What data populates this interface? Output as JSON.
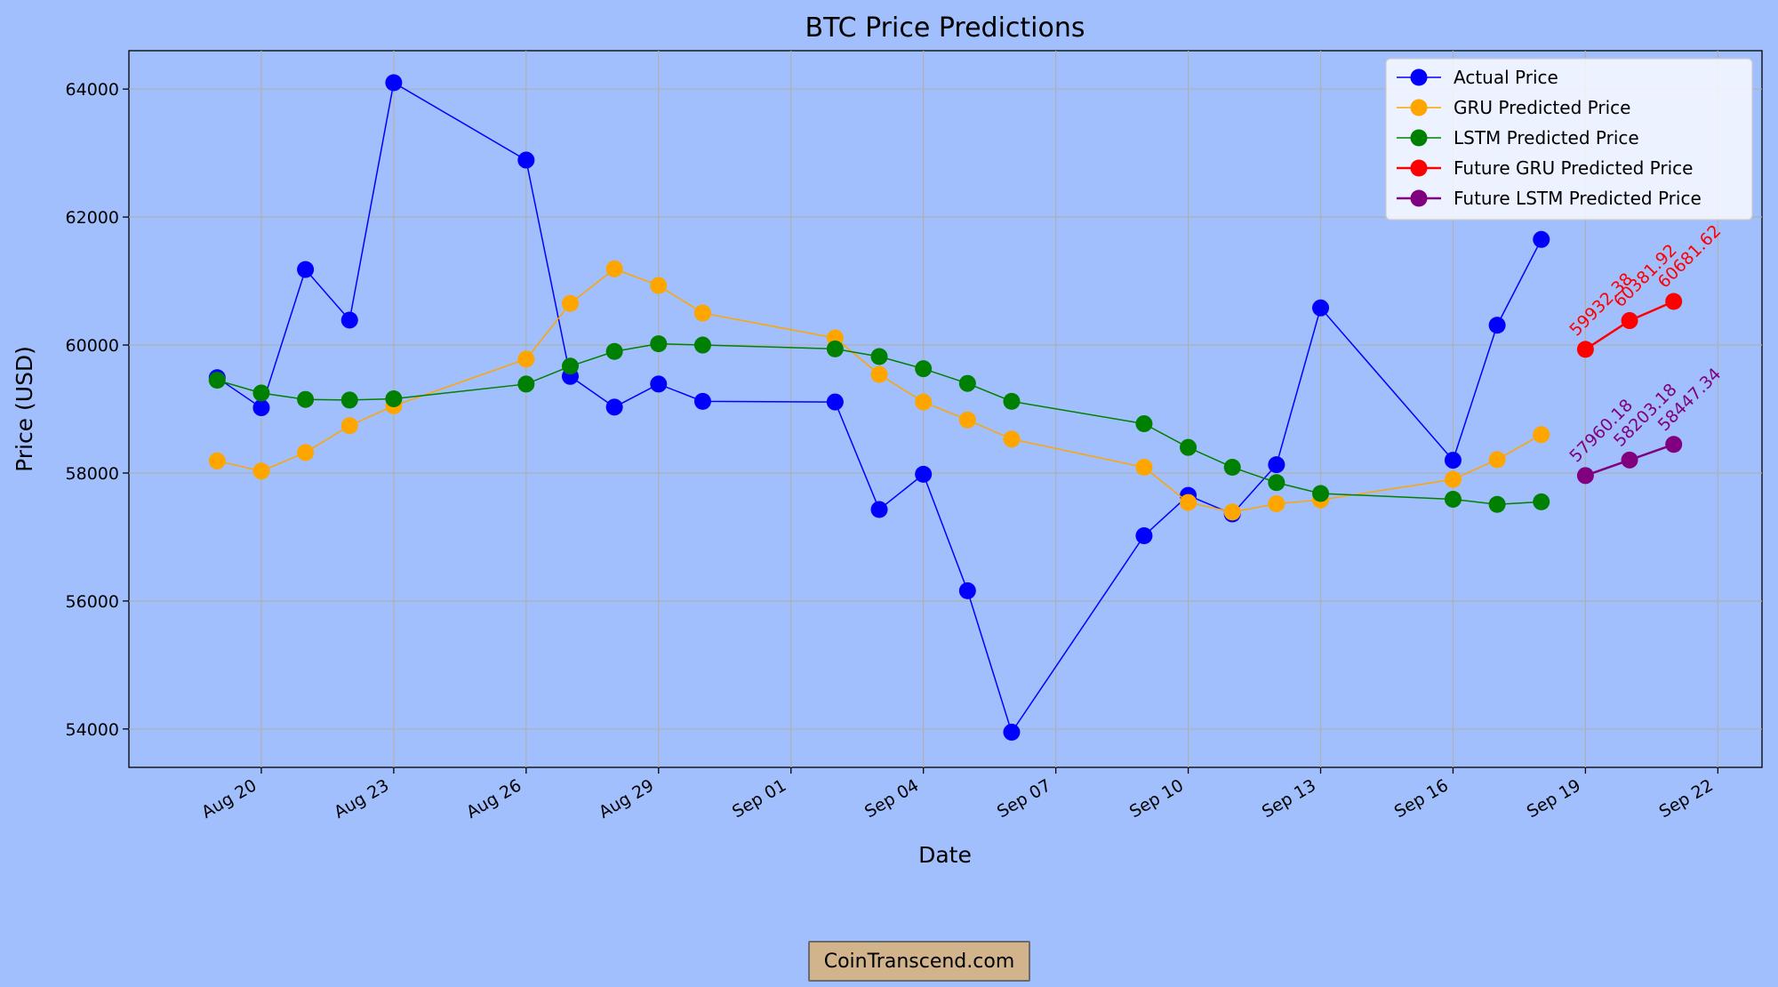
{
  "chart_data": {
    "type": "line",
    "title": "BTC Price Predictions",
    "xlabel": "Date",
    "ylabel": "Price (USD)",
    "x_dates": [
      "2024-08-19",
      "2024-08-20",
      "2024-08-21",
      "2024-08-22",
      "2024-08-23",
      "2024-08-26",
      "2024-08-27",
      "2024-08-28",
      "2024-08-29",
      "2024-08-30",
      "2024-09-02",
      "2024-09-03",
      "2024-09-04",
      "2024-09-05",
      "2024-09-06",
      "2024-09-09",
      "2024-09-10",
      "2024-09-11",
      "2024-09-12",
      "2024-09-13",
      "2024-09-16",
      "2024-09-17",
      "2024-09-18"
    ],
    "future_dates": [
      "2024-09-19",
      "2024-09-20",
      "2024-09-21"
    ],
    "x_ticks": [
      {
        "date": "2024-08-20",
        "label": "Aug 20"
      },
      {
        "date": "2024-08-23",
        "label": "Aug 23"
      },
      {
        "date": "2024-08-26",
        "label": "Aug 26"
      },
      {
        "date": "2024-08-29",
        "label": "Aug 29"
      },
      {
        "date": "2024-09-01",
        "label": "Sep 01"
      },
      {
        "date": "2024-09-04",
        "label": "Sep 04"
      },
      {
        "date": "2024-09-07",
        "label": "Sep 07"
      },
      {
        "date": "2024-09-10",
        "label": "Sep 10"
      },
      {
        "date": "2024-09-13",
        "label": "Sep 13"
      },
      {
        "date": "2024-09-16",
        "label": "Sep 16"
      },
      {
        "date": "2024-09-19",
        "label": "Sep 19"
      },
      {
        "date": "2024-09-22",
        "label": "Sep 22"
      }
    ],
    "y_ticks": [
      54000,
      56000,
      58000,
      60000,
      62000,
      64000
    ],
    "xlim": [
      "2024-08-17",
      "2024-09-23"
    ],
    "ylim": [
      53400,
      64600
    ],
    "grid": true,
    "legend_position": "top-right",
    "series": [
      {
        "name": "Actual Price",
        "color": "#0000ff",
        "linewidth": 1.5,
        "values": [
          59490,
          59020,
          61180,
          60390,
          64100,
          62890,
          59510,
          59030,
          59390,
          59120,
          59110,
          57430,
          57980,
          56160,
          53950,
          57020,
          57650,
          57360,
          58130,
          60580,
          58200,
          60310,
          61650
        ]
      },
      {
        "name": "GRU Predicted Price",
        "color": "#ffa500",
        "linewidth": 1.5,
        "values": [
          58190,
          58030,
          58320,
          58740,
          59050,
          59780,
          60650,
          61190,
          60930,
          60500,
          60110,
          59540,
          59110,
          58830,
          58530,
          58090,
          57540,
          57390,
          57520,
          57580,
          57900,
          58210,
          58600
        ]
      },
      {
        "name": "LSTM Predicted Price",
        "color": "#008000",
        "linewidth": 1.5,
        "values": [
          59450,
          59250,
          59150,
          59140,
          59160,
          59390,
          59670,
          59900,
          60020,
          60000,
          59940,
          59820,
          59630,
          59400,
          59120,
          58770,
          58400,
          58090,
          57850,
          57680,
          57590,
          57510,
          57550
        ]
      },
      {
        "name": "Future GRU Predicted Price",
        "color": "#ff0000",
        "linewidth": 2.5,
        "future": true,
        "values": [
          59932.38,
          60381.92,
          60681.62
        ],
        "labels": [
          "59932.38",
          "60381.92",
          "60681.62"
        ]
      },
      {
        "name": "Future LSTM Predicted Price",
        "color": "#800080",
        "linewidth": 2.5,
        "future": true,
        "values": [
          57960.18,
          58203.18,
          58447.34
        ],
        "labels": [
          "57960.18",
          "58203.18",
          "58447.34"
        ]
      }
    ]
  },
  "watermark": "CoinTranscend.com"
}
